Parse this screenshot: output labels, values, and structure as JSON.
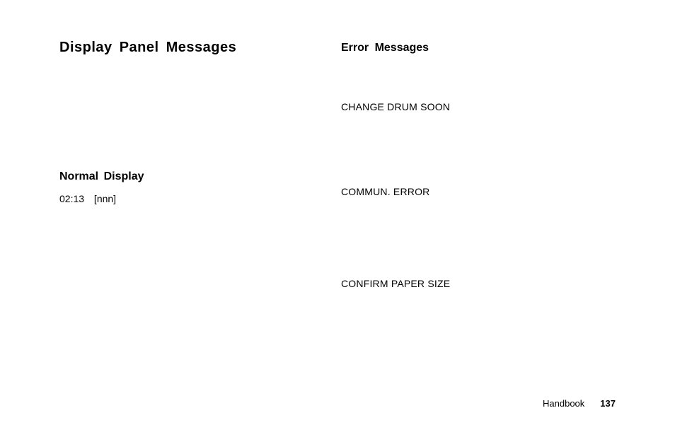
{
  "left": {
    "title": "Display Panel Messages",
    "section_heading": "Normal Display",
    "normal_display_value": "02:13 [nnn]"
  },
  "right": {
    "heading": "Error Messages",
    "errors": {
      "e1": "CHANGE DRUM SOON",
      "e2": "COMMUN. ERROR",
      "e3": "CONFIRM PAPER SIZE"
    }
  },
  "footer": {
    "label": "Handbook",
    "page": "137"
  }
}
